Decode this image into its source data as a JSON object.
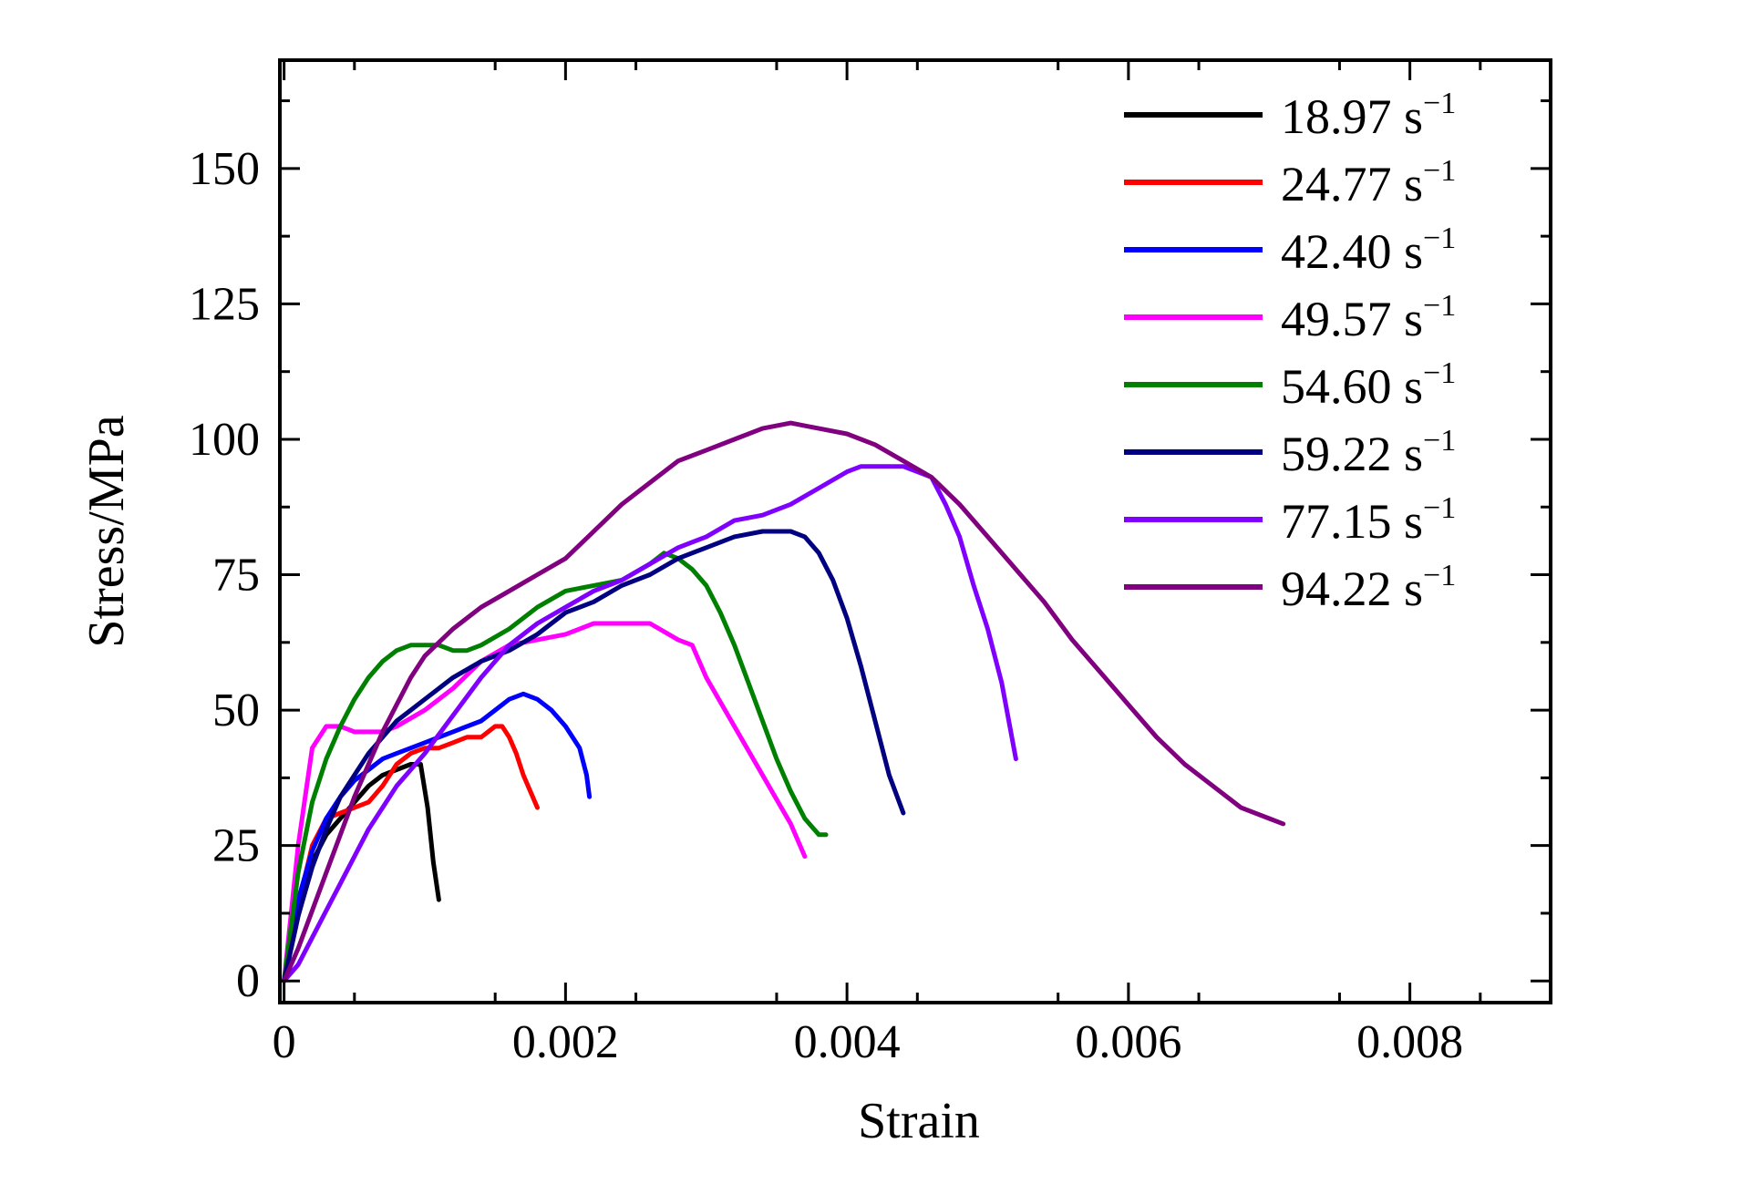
{
  "chart_data": {
    "type": "line",
    "title": "",
    "xlabel": "Strain",
    "ylabel": "Stress/MPa",
    "xlim": [
      -3e-05,
      0.009
    ],
    "ylim": [
      -4,
      170
    ],
    "xticks": [
      0,
      0.002,
      0.004,
      0.006,
      0.008
    ],
    "xtick_labels": [
      "0",
      "0.002",
      "0.004",
      "0.006",
      "0.008"
    ],
    "yticks": [
      0,
      25,
      50,
      75,
      100,
      125,
      150
    ],
    "ytick_labels": [
      "0",
      "25",
      "50",
      "75",
      "100",
      "125",
      "150"
    ],
    "grid": false,
    "legend_position": "top-right",
    "unit_label": "s",
    "unit_exponent": "−1",
    "series": [
      {
        "name": "18.97",
        "color": "#000000",
        "x": [
          0,
          0.0001,
          0.0002,
          0.0003,
          0.0004,
          0.0005,
          0.0006,
          0.0007,
          0.0008,
          0.0009,
          0.00097,
          0.00102,
          0.00106,
          0.0011
        ],
        "y": [
          0,
          12,
          22,
          27,
          30,
          33,
          36,
          38,
          39,
          40,
          40,
          32,
          22,
          15
        ]
      },
      {
        "name": "24.77",
        "color": "#ff0000",
        "x": [
          0,
          0.0001,
          0.0002,
          0.0003,
          0.0004,
          0.0005,
          0.0006,
          0.0007,
          0.0008,
          0.0009,
          0.001,
          0.0011,
          0.0012,
          0.0013,
          0.0014,
          0.0015,
          0.00155,
          0.0016,
          0.00165,
          0.0017,
          0.00175,
          0.0018
        ],
        "y": [
          0,
          14,
          25,
          30,
          31,
          32,
          33,
          36,
          40,
          42,
          43,
          43,
          44,
          45,
          45,
          47,
          47,
          45,
          42,
          38,
          35,
          32
        ]
      },
      {
        "name": "42.40",
        "color": "#0000ff",
        "x": [
          0,
          0.0001,
          0.0002,
          0.0003,
          0.0004,
          0.0005,
          0.0006,
          0.0007,
          0.0008,
          0.0009,
          0.001,
          0.0011,
          0.0012,
          0.0013,
          0.0014,
          0.0015,
          0.0016,
          0.0017,
          0.0018,
          0.0019,
          0.002,
          0.0021,
          0.00215,
          0.00217
        ],
        "y": [
          0,
          15,
          24,
          30,
          34,
          37,
          39,
          41,
          42,
          43,
          44,
          45,
          46,
          47,
          48,
          50,
          52,
          53,
          52,
          50,
          47,
          43,
          38,
          34
        ]
      },
      {
        "name": "49.57",
        "color": "#ff00ff",
        "x": [
          0,
          0.0001,
          0.0002,
          0.0003,
          0.0004,
          0.0005,
          0.0006,
          0.0007,
          0.0008,
          0.001,
          0.0012,
          0.0014,
          0.0016,
          0.0018,
          0.002,
          0.0022,
          0.0024,
          0.0026,
          0.0028,
          0.0029,
          0.003,
          0.0032,
          0.0034,
          0.0036,
          0.0037
        ],
        "y": [
          0,
          25,
          43,
          47,
          47,
          46,
          46,
          46,
          47,
          50,
          54,
          59,
          62,
          63,
          64,
          66,
          66,
          66,
          63,
          62,
          56,
          47,
          38,
          29,
          23
        ]
      },
      {
        "name": "54.60",
        "color": "#008000",
        "x": [
          0,
          0.0001,
          0.0002,
          0.0003,
          0.0004,
          0.0005,
          0.0006,
          0.0007,
          0.0008,
          0.0009,
          0.001,
          0.0011,
          0.0012,
          0.0013,
          0.0014,
          0.0016,
          0.0018,
          0.002,
          0.0022,
          0.0024,
          0.0026,
          0.0027,
          0.0028,
          0.0029,
          0.003,
          0.0031,
          0.0032,
          0.0033,
          0.0034,
          0.0035,
          0.0036,
          0.0037,
          0.0038,
          0.00385
        ],
        "y": [
          0,
          20,
          33,
          41,
          47,
          52,
          56,
          59,
          61,
          62,
          62,
          62,
          61,
          61,
          62,
          65,
          69,
          72,
          73,
          74,
          77,
          79,
          78,
          76,
          73,
          68,
          62,
          55,
          48,
          41,
          35,
          30,
          27,
          27
        ]
      },
      {
        "name": "59.22",
        "color": "#000080",
        "x": [
          0,
          0.0001,
          0.0002,
          0.0003,
          0.0004,
          0.0005,
          0.0006,
          0.0007,
          0.0008,
          0.0009,
          0.001,
          0.0012,
          0.0014,
          0.0016,
          0.0018,
          0.002,
          0.0022,
          0.0024,
          0.0026,
          0.0028,
          0.003,
          0.0032,
          0.0034,
          0.0036,
          0.0037,
          0.0038,
          0.0039,
          0.004,
          0.0041,
          0.0042,
          0.0043,
          0.0044
        ],
        "y": [
          0,
          12,
          21,
          28,
          34,
          38,
          42,
          45,
          48,
          50,
          52,
          56,
          59,
          61,
          64,
          68,
          70,
          73,
          75,
          78,
          80,
          82,
          83,
          83,
          82,
          79,
          74,
          67,
          58,
          48,
          38,
          31
        ]
      },
      {
        "name": "77.15",
        "color": "#8000ff",
        "x": [
          0,
          0.0001,
          0.0002,
          0.0003,
          0.0004,
          0.0005,
          0.0006,
          0.0007,
          0.0008,
          0.0009,
          0.001,
          0.0012,
          0.0014,
          0.0016,
          0.0018,
          0.002,
          0.0022,
          0.0024,
          0.0026,
          0.0028,
          0.003,
          0.0032,
          0.0034,
          0.0036,
          0.0038,
          0.004,
          0.0041,
          0.0042,
          0.0043,
          0.0044,
          0.0045,
          0.0046,
          0.0047,
          0.0048,
          0.0049,
          0.005,
          0.0051,
          0.0052
        ],
        "y": [
          0,
          3,
          8,
          13,
          18,
          23,
          28,
          32,
          36,
          39,
          42,
          49,
          56,
          62,
          66,
          69,
          72,
          74,
          77,
          80,
          82,
          85,
          86,
          88,
          91,
          94,
          95,
          95,
          95,
          95,
          94,
          93,
          88,
          82,
          73,
          65,
          55,
          41
        ]
      },
      {
        "name": "94.22",
        "color": "#800080",
        "x": [
          0,
          0.0001,
          0.0002,
          0.0003,
          0.0004,
          0.0005,
          0.0006,
          0.0007,
          0.0008,
          0.0009,
          0.001,
          0.0012,
          0.0014,
          0.0016,
          0.0018,
          0.002,
          0.0022,
          0.0024,
          0.0026,
          0.0028,
          0.003,
          0.0032,
          0.0034,
          0.0036,
          0.0038,
          0.004,
          0.0042,
          0.0044,
          0.0046,
          0.0048,
          0.005,
          0.0052,
          0.0054,
          0.0056,
          0.0058,
          0.006,
          0.0062,
          0.0064,
          0.0066,
          0.0068,
          0.007,
          0.0071
        ],
        "y": [
          0,
          6,
          13,
          20,
          27,
          34,
          40,
          46,
          51,
          56,
          60,
          65,
          69,
          72,
          75,
          78,
          83,
          88,
          92,
          96,
          98,
          100,
          102,
          103,
          102,
          101,
          99,
          96,
          93,
          88,
          82,
          76,
          70,
          63,
          57,
          51,
          45,
          40,
          36,
          32,
          30,
          29
        ]
      }
    ]
  }
}
